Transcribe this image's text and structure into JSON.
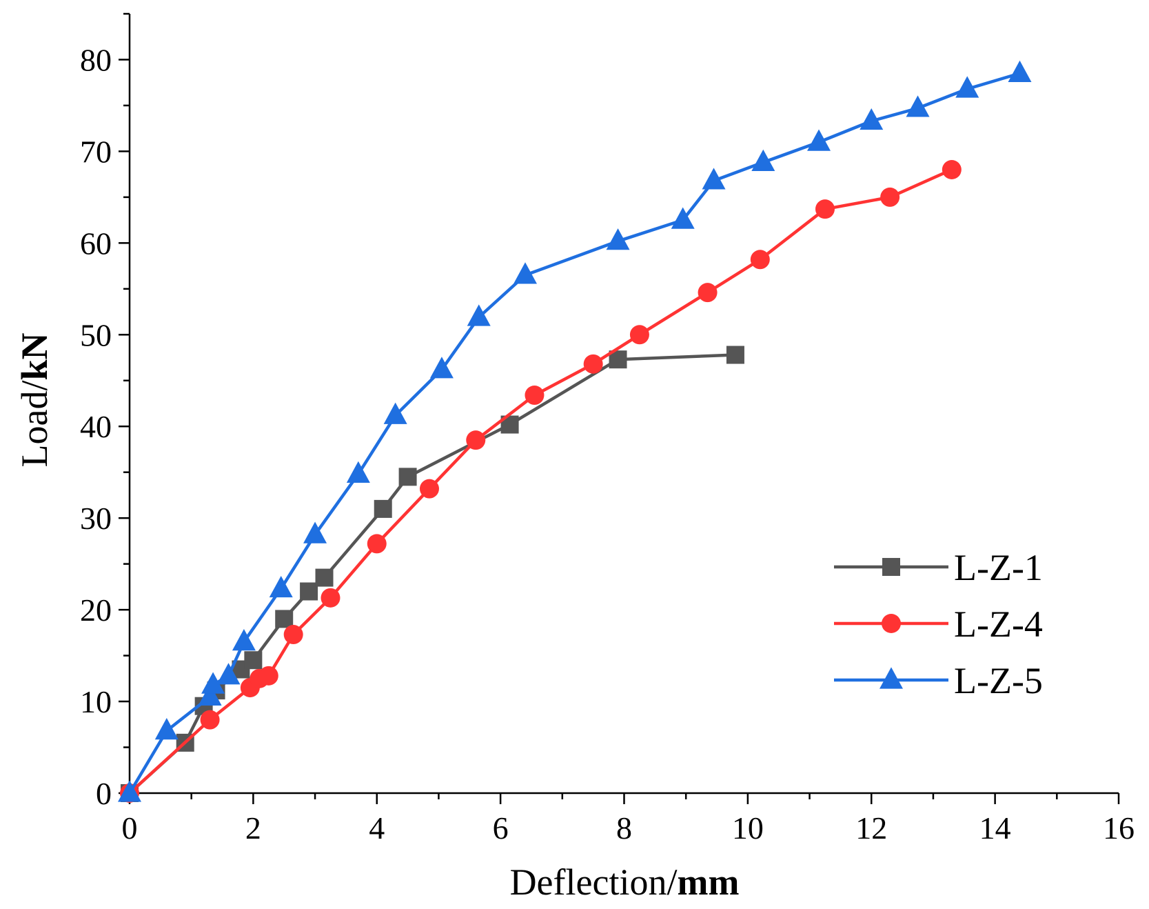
{
  "chart_data": {
    "type": "line",
    "title": "",
    "xlabel": {
      "prefix": "Deflection/",
      "unit": "mm"
    },
    "ylabel": {
      "prefix": "Load/",
      "unit": "kN"
    },
    "xlim": [
      0,
      16
    ],
    "ylim": [
      0,
      85
    ],
    "xticks": [
      0,
      2,
      4,
      6,
      8,
      10,
      12,
      14,
      16
    ],
    "yticks": [
      0,
      10,
      20,
      30,
      40,
      50,
      60,
      70,
      80
    ],
    "x_minor_step": 1,
    "y_minor_step": 5,
    "grid": false,
    "legend_position": "right",
    "series": [
      {
        "name": "L-Z-1",
        "color": "#555555",
        "marker": "square",
        "x": [
          0,
          0.9,
          1.2,
          1.4,
          1.8,
          2.0,
          2.5,
          2.9,
          3.15,
          4.1,
          4.5,
          6.15,
          7.9,
          9.8
        ],
        "y": [
          0,
          5.5,
          9.5,
          11.2,
          13.5,
          14.5,
          19,
          22,
          23.5,
          31,
          34.5,
          40.2,
          47.3,
          47.8
        ]
      },
      {
        "name": "L-Z-4",
        "color": "#ff3333",
        "marker": "circle",
        "x": [
          0,
          1.3,
          1.95,
          2.1,
          2.25,
          2.65,
          3.25,
          4.0,
          4.85,
          5.6,
          6.55,
          7.5,
          8.25,
          9.35,
          10.2,
          11.25,
          12.3,
          13.3
        ],
        "y": [
          0,
          8,
          11.5,
          12.5,
          12.8,
          17.3,
          21.3,
          27.2,
          33.2,
          38.5,
          43.4,
          46.8,
          50,
          54.6,
          58.2,
          63.7,
          65,
          68
        ]
      },
      {
        "name": "L-Z-5",
        "color": "#1f6fe0",
        "marker": "triangle",
        "x": [
          0,
          0.6,
          1.3,
          1.35,
          1.6,
          1.85,
          2.45,
          3.0,
          3.7,
          4.3,
          5.05,
          5.65,
          6.4,
          7.9,
          8.95,
          9.45,
          10.25,
          11.15,
          12.0,
          12.75,
          13.55,
          14.4
        ],
        "y": [
          0,
          6.8,
          10.5,
          11.8,
          12.8,
          16.5,
          22.3,
          28.2,
          34.8,
          41.2,
          46.2,
          51.9,
          56.5,
          60.2,
          62.5,
          66.8,
          68.8,
          71,
          73.3,
          74.7,
          76.8,
          78.5
        ]
      }
    ]
  }
}
